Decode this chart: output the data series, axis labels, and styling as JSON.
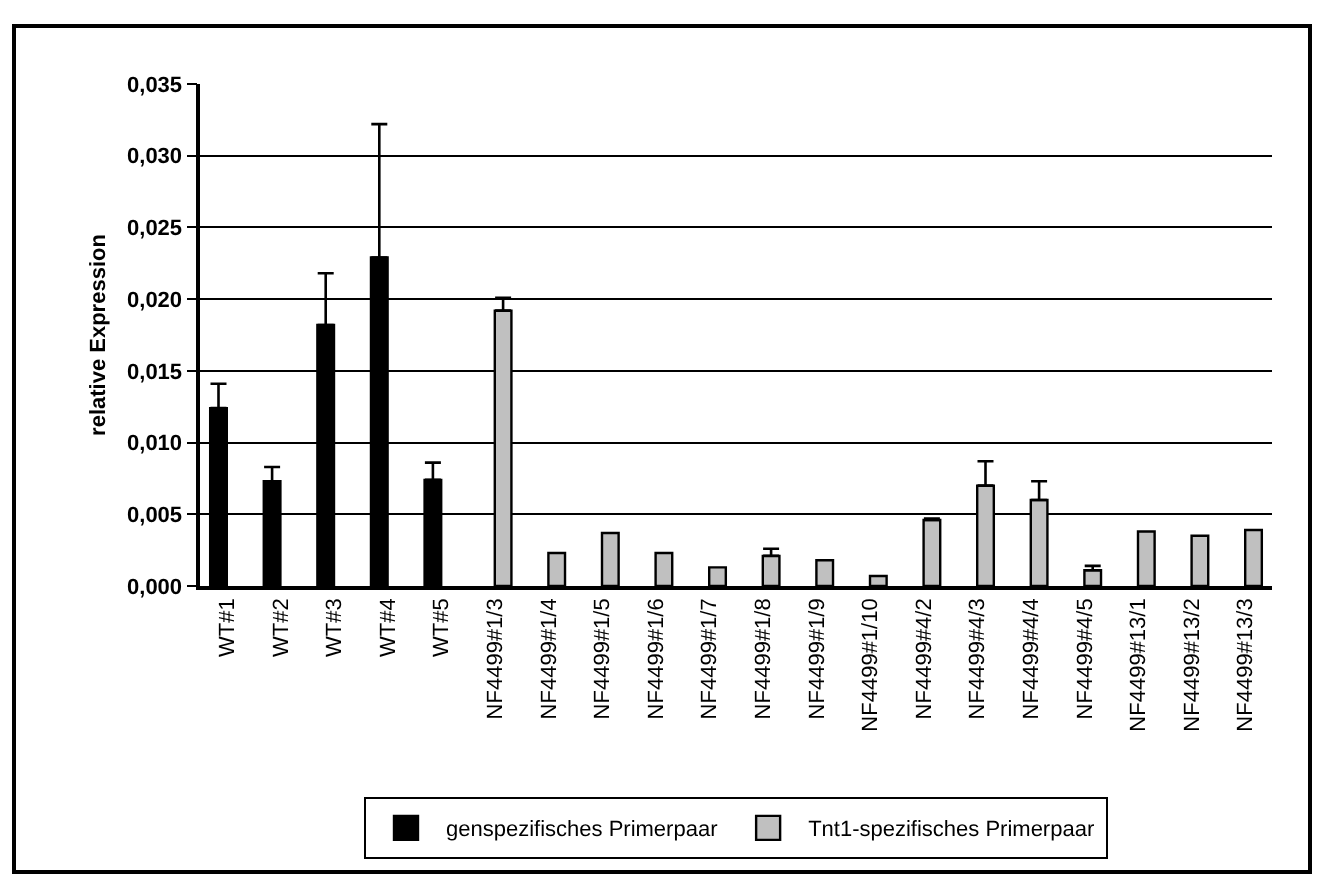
{
  "chart_data": {
    "type": "bar",
    "ylabel": "relative Expression",
    "categories": [
      "WT#1",
      "WT#2",
      "WT#3",
      "WT#4",
      "WT#5",
      "NF4499#1/3",
      "NF4499#1/4",
      "NF4499#1/5",
      "NF4499#1/6",
      "NF4499#1/7",
      "NF4499#1/8",
      "NF4499#1/9",
      "NF4499#1/10",
      "NF4499#4/2",
      "NF4499#4/3",
      "NF4499#4/4",
      "NF4499#4/5",
      "NF4499#13/1",
      "NF4499#13/2",
      "NF4499#13/3"
    ],
    "series": [
      {
        "name": "genspezifisches Primerpaar",
        "color": "#000000",
        "values": [
          0.0124,
          0.0073,
          0.0182,
          0.0229,
          0.0074,
          null,
          null,
          null,
          null,
          null,
          null,
          null,
          null,
          null,
          null,
          null,
          null,
          null,
          null,
          null
        ],
        "errors": [
          [
            0.0124,
            0.0141
          ],
          [
            0.0073,
            0.0083
          ],
          [
            0.0182,
            0.0218
          ],
          [
            0.0229,
            0.0322
          ],
          [
            0.0074,
            0.0086
          ],
          null,
          null,
          null,
          null,
          null,
          null,
          null,
          null,
          null,
          null,
          null,
          null,
          null,
          null,
          null
        ]
      },
      {
        "name": "Tnt1-spezifisches Primerpaar",
        "color": "#c0c0c0",
        "values": [
          null,
          null,
          null,
          null,
          null,
          0.0192,
          0.0023,
          0.0037,
          0.0023,
          0.0013,
          0.0021,
          0.0018,
          0.0007,
          0.0046,
          0.007,
          0.006,
          0.0011,
          0.0038,
          0.0035,
          0.0039
        ],
        "errors": [
          null,
          null,
          null,
          null,
          null,
          [
            0.0192,
            0.0201
          ],
          null,
          null,
          null,
          null,
          [
            0.0021,
            0.0026
          ],
          null,
          null,
          [
            0.0046,
            0.0047
          ],
          [
            0.007,
            0.0087
          ],
          [
            0.006,
            0.0073
          ],
          [
            0.0011,
            0.0014
          ],
          null,
          null,
          null
        ]
      }
    ],
    "ylim": [
      0,
      0.035
    ],
    "yticks": [
      {
        "value": 0,
        "label": "0,000"
      },
      {
        "value": 0.005,
        "label": "0,005"
      },
      {
        "value": 0.01,
        "label": "0,010"
      },
      {
        "value": 0.015,
        "label": "0,015"
      },
      {
        "value": 0.02,
        "label": "0,020"
      },
      {
        "value": 0.025,
        "label": "0,025"
      },
      {
        "value": 0.03,
        "label": "0,030"
      },
      {
        "value": 0.035,
        "label": "0,035"
      }
    ],
    "grid": "y",
    "legend": "bottom"
  }
}
